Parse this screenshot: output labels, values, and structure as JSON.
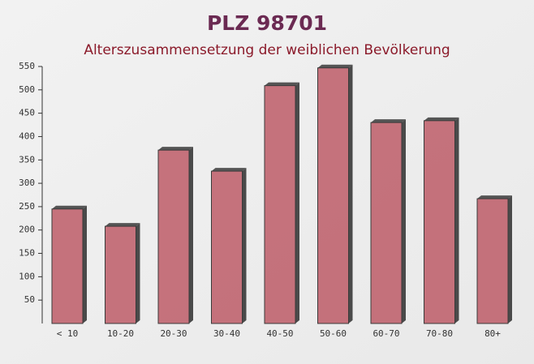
{
  "chart_data": {
    "type": "bar",
    "title": "PLZ 98701",
    "subtitle": "Alterszusammensetzung der weiblichen Bevölkerung",
    "categories": [
      "< 10",
      "10-20",
      "20-30",
      "30-40",
      "40-50",
      "50-60",
      "60-70",
      "70-80",
      "80+"
    ],
    "values": [
      245,
      208,
      371,
      326,
      509,
      547,
      430,
      434,
      267
    ],
    "color": "#c0646f",
    "ylim": [
      0,
      550
    ],
    "yticks": [
      50,
      100,
      150,
      200,
      250,
      300,
      350,
      400,
      450,
      500,
      550
    ],
    "grid": false
  }
}
